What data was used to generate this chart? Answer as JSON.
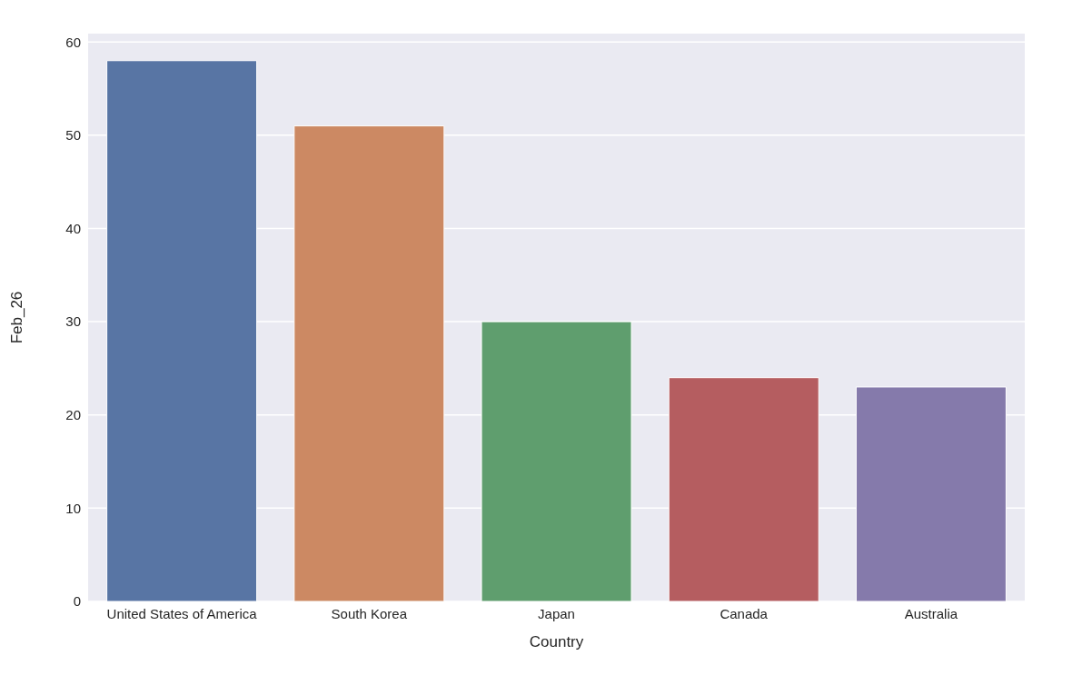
{
  "chart_data": {
    "type": "bar",
    "xlabel": "Country",
    "ylabel": "Feb_26",
    "categories": [
      "United States of America",
      "South Korea",
      "Japan",
      "Canada",
      "Australia"
    ],
    "values": [
      58,
      51,
      30,
      24,
      23
    ],
    "colors": [
      "#5875a4",
      "#cc8963",
      "#5f9e6e",
      "#b55d60",
      "#857aab"
    ],
    "ylim": [
      0,
      60.9
    ],
    "yticks": [
      0,
      10,
      20,
      30,
      40,
      50,
      60
    ],
    "grid": "y"
  }
}
